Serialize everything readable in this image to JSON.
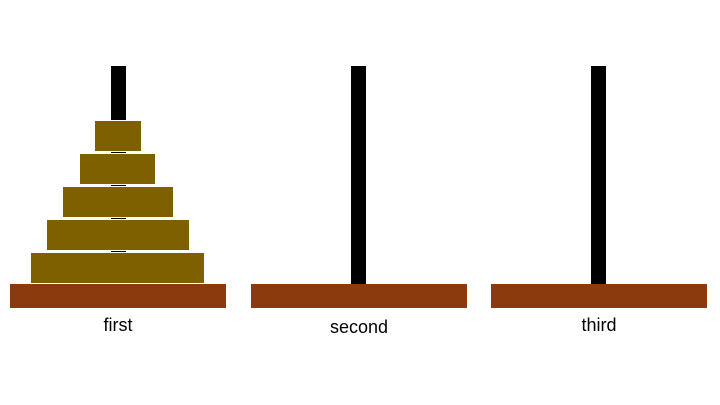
{
  "colors": {
    "rod": "#000000",
    "base": "#8B3A0E",
    "disk": "#7F6000",
    "disk_border": "#ffffff"
  },
  "pegs": [
    {
      "label": "first",
      "disks": 5
    },
    {
      "label": "second",
      "disks": 0
    },
    {
      "label": "third",
      "disks": 0
    }
  ]
}
